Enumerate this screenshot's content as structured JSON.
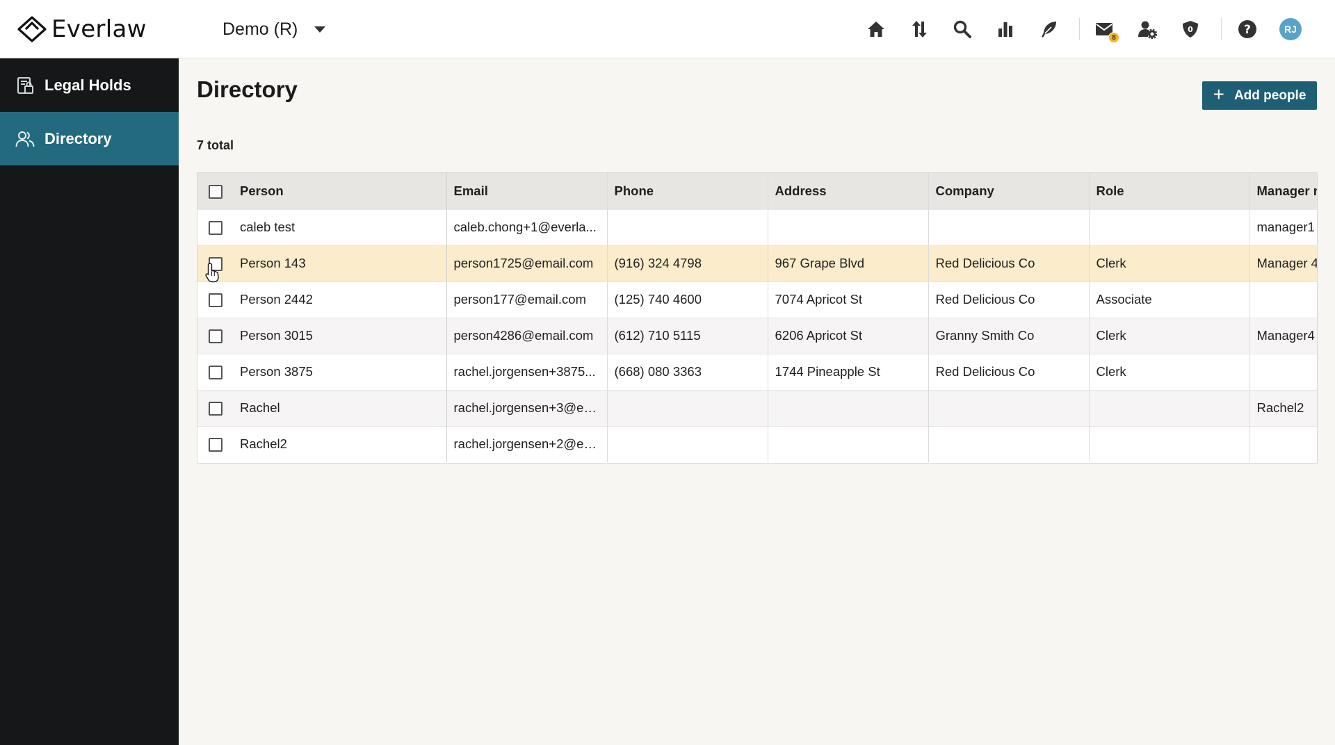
{
  "header": {
    "logo_text": "Everlaw",
    "project": "Demo (R)",
    "nav_icons": [
      "home-icon",
      "sort-icon",
      "search-icon",
      "analytics-icon",
      "feather-icon",
      "mail-icon",
      "user-settings-icon",
      "shield-icon",
      "help-icon"
    ],
    "mail_badge": "8",
    "shield_badge": "0",
    "avatar_initials": "RJ"
  },
  "sidebar": {
    "items": [
      {
        "label": "Legal Holds",
        "icon": "legal-holds-icon",
        "active": false
      },
      {
        "label": "Directory",
        "icon": "people-icon",
        "active": true
      }
    ]
  },
  "main": {
    "title": "Directory",
    "add_button": "Add people",
    "total": "7 total"
  },
  "table": {
    "headers": [
      "Person",
      "Email",
      "Phone",
      "Address",
      "Company",
      "Role",
      "Manager name"
    ],
    "rows": [
      {
        "person": "caleb test",
        "email": "caleb.chong+1@everla...",
        "phone": "",
        "address": "",
        "company": "",
        "role": "",
        "manager": "manager1"
      },
      {
        "person": "Person 143",
        "email": "person1725@email.com",
        "phone": "(916) 324 4798",
        "address": "967 Grape Blvd",
        "company": "Red Delicious Co",
        "role": "Clerk",
        "manager": "Manager 4"
      },
      {
        "person": "Person 2442",
        "email": "person177@email.com",
        "phone": "(125) 740 4600",
        "address": "7074 Apricot St",
        "company": "Red Delicious Co",
        "role": "Associate",
        "manager": ""
      },
      {
        "person": "Person 3015",
        "email": "person4286@email.com",
        "phone": "(612) 710 5115",
        "address": "6206 Apricot St",
        "company": "Granny Smith Co",
        "role": "Clerk",
        "manager": "Manager4"
      },
      {
        "person": "Person 3875",
        "email": "rachel.jorgensen+3875...",
        "phone": "(668) 080 3363",
        "address": "1744 Pineapple St",
        "company": "Red Delicious Co",
        "role": "Clerk",
        "manager": ""
      },
      {
        "person": "Rachel",
        "email": "rachel.jorgensen+3@ev...",
        "phone": "",
        "address": "",
        "company": "",
        "role": "",
        "manager": "Rachel2"
      },
      {
        "person": "Rachel2",
        "email": "rachel.jorgensen+2@ev...",
        "phone": "",
        "address": "",
        "company": "",
        "role": "",
        "manager": ""
      }
    ]
  },
  "colors": {
    "accent": "#1f5f75",
    "sidebar_bg": "#161718",
    "sidebar_active": "#236a7f",
    "row_highlight": "#fbeccb",
    "badge": "#f0b429"
  }
}
